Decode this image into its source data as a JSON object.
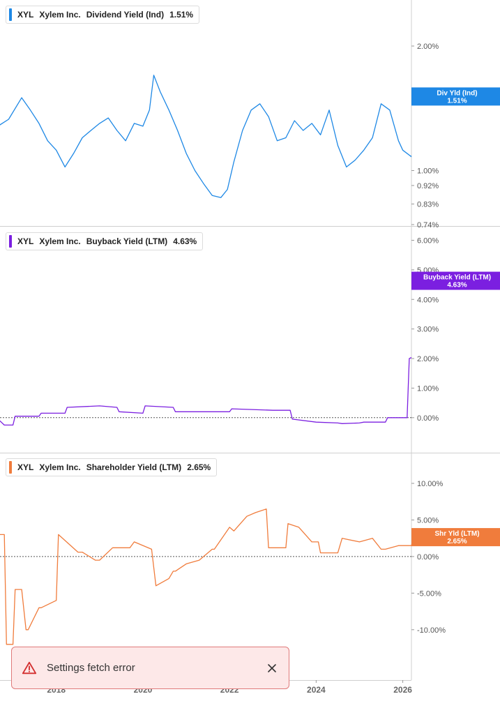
{
  "chart_data": [
    {
      "type": "line",
      "legend": {
        "ticker": "XYL",
        "company": "Xylem Inc.",
        "metric": "Dividend Yield (Ind)",
        "value": "1.51%"
      },
      "tag": {
        "line1": "Div Yld (Ind)",
        "line2": "1.51%"
      },
      "y_scale": "log",
      "ylim": [
        0.74,
        2.3
      ],
      "y_ticks": [
        {
          "v": 2.0,
          "label": "2.00%"
        },
        {
          "v": 1.0,
          "label": "1.00%"
        },
        {
          "v": 0.92,
          "label": "0.92%"
        },
        {
          "v": 0.83,
          "label": "0.83%"
        },
        {
          "v": 0.74,
          "label": "0.74%"
        }
      ],
      "color": "#1e88e5",
      "series": [
        {
          "x": [
            2016.4,
            2016.6,
            2016.9,
            2017.2,
            2017.4,
            2017.6,
            2017.8,
            2018.0,
            2018.2,
            2018.4,
            2018.6,
            2018.8,
            2019.0,
            2019.2,
            2019.4,
            2019.6,
            2019.8,
            2020.0,
            2020.15,
            2020.25,
            2020.4,
            2020.6,
            2020.8,
            2021.0,
            2021.2,
            2021.4,
            2021.6,
            2021.8,
            2021.95,
            2022.1,
            2022.3,
            2022.5,
            2022.7,
            2022.9,
            2023.1,
            2023.3,
            2023.5,
            2023.7,
            2023.9,
            2024.1,
            2024.3,
            2024.5,
            2024.7,
            2024.9,
            2025.1,
            2025.3,
            2025.5,
            2025.7,
            2025.9,
            2026.0,
            2026.2,
            2026.35,
            2026.5,
            2026.6
          ],
          "y": [
            1.3,
            1.27,
            1.33,
            1.5,
            1.4,
            1.3,
            1.18,
            1.12,
            1.02,
            1.1,
            1.2,
            1.25,
            1.3,
            1.34,
            1.25,
            1.18,
            1.3,
            1.28,
            1.4,
            1.7,
            1.55,
            1.4,
            1.25,
            1.1,
            1.0,
            0.93,
            0.87,
            0.86,
            0.9,
            1.05,
            1.25,
            1.4,
            1.45,
            1.35,
            1.18,
            1.2,
            1.32,
            1.25,
            1.3,
            1.22,
            1.4,
            1.15,
            1.02,
            1.06,
            1.12,
            1.2,
            1.45,
            1.4,
            1.18,
            1.12,
            1.08,
            1.25,
            1.55,
            1.51
          ]
        }
      ]
    },
    {
      "type": "line",
      "legend": {
        "ticker": "XYL",
        "company": "Xylem Inc.",
        "metric": "Buyback Yield (LTM)",
        "value": "4.63%"
      },
      "tag": {
        "line1": "Buyback Yield (LTM)",
        "line2": "4.63%"
      },
      "y_scale": "linear",
      "ylim": [
        -0.5,
        6.2
      ],
      "y_ticks": [
        {
          "v": 6.0,
          "label": "6.00%"
        },
        {
          "v": 5.0,
          "label": "5.00%"
        },
        {
          "v": 4.0,
          "label": "4.00%"
        },
        {
          "v": 3.0,
          "label": "3.00%"
        },
        {
          "v": 2.0,
          "label": "2.00%"
        },
        {
          "v": 1.0,
          "label": "1.00%"
        },
        {
          "v": 0.0,
          "label": "0.00%"
        }
      ],
      "color": "#7b1fe0",
      "series": [
        {
          "x": [
            2016.4,
            2016.6,
            2016.62,
            2016.8,
            2017.0,
            2017.05,
            2017.6,
            2017.65,
            2018.2,
            2018.25,
            2019.0,
            2019.4,
            2019.45,
            2020.0,
            2020.05,
            2020.7,
            2020.75,
            2021.5,
            2022.0,
            2022.05,
            2023.0,
            2023.05,
            2023.4,
            2023.45,
            2024.0,
            2024.5,
            2024.6,
            2025.0,
            2025.1,
            2025.6,
            2025.65,
            2026.0,
            2026.1,
            2026.15,
            2026.3,
            2026.45,
            2026.5,
            2026.55,
            2026.6
          ],
          "y": [
            1.1,
            1.1,
            0.0,
            -0.25,
            -0.25,
            0.05,
            0.05,
            0.15,
            0.15,
            0.35,
            0.4,
            0.35,
            0.2,
            0.15,
            0.4,
            0.35,
            0.2,
            0.2,
            0.2,
            0.3,
            0.25,
            0.25,
            0.25,
            -0.05,
            -0.15,
            -0.18,
            -0.2,
            -0.18,
            -0.15,
            -0.15,
            0.0,
            0.0,
            0.0,
            2.0,
            2.1,
            1.9,
            4.3,
            4.5,
            4.63
          ]
        }
      ]
    },
    {
      "type": "line",
      "legend": {
        "ticker": "XYL",
        "company": "Xylem Inc.",
        "metric": "Shareholder Yield (LTM)",
        "value": "2.65%"
      },
      "tag": {
        "line1": "Shr Yld (LTM)",
        "line2": "2.65%"
      },
      "y_scale": "linear",
      "ylim": [
        -14.5,
        12.0
      ],
      "y_ticks": [
        {
          "v": 10.0,
          "label": "10.00%"
        },
        {
          "v": 5.0,
          "label": "5.00%"
        },
        {
          "v": 0.0,
          "label": "0.00%"
        },
        {
          "v": -5.0,
          "label": "-5.00%"
        },
        {
          "v": -10.0,
          "label": "-10.00%"
        }
      ],
      "color": "#f07c3c",
      "series": [
        {
          "x": [
            2016.4,
            2016.8,
            2016.85,
            2017.0,
            2017.05,
            2017.2,
            2017.3,
            2017.35,
            2017.6,
            2017.65,
            2018.0,
            2018.05,
            2018.5,
            2018.6,
            2018.9,
            2019.0,
            2019.3,
            2019.7,
            2019.8,
            2020.2,
            2020.3,
            2020.6,
            2020.7,
            2020.75,
            2021.0,
            2021.3,
            2021.6,
            2021.65,
            2022.0,
            2022.1,
            2022.4,
            2022.6,
            2022.85,
            2022.9,
            2023.3,
            2023.35,
            2023.6,
            2023.9,
            2024.05,
            2024.1,
            2024.5,
            2024.6,
            2025.0,
            2025.3,
            2025.5,
            2025.6,
            2025.9,
            2026.2,
            2026.3,
            2026.5,
            2026.6
          ],
          "y": [
            3.0,
            3.0,
            -12.0,
            -12.0,
            -4.5,
            -4.5,
            -10.0,
            -10.0,
            -7.0,
            -7.0,
            -6.0,
            3.0,
            0.6,
            0.6,
            -0.5,
            -0.5,
            1.2,
            1.2,
            2.0,
            1.0,
            -4.0,
            -3.0,
            -2.0,
            -2.0,
            -1.0,
            -0.5,
            1.0,
            1.0,
            4.0,
            3.5,
            5.5,
            6.0,
            6.5,
            1.2,
            1.2,
            4.5,
            4.0,
            2.0,
            2.0,
            0.5,
            0.5,
            2.5,
            2.0,
            2.5,
            1.0,
            1.0,
            1.5,
            1.5,
            4.0,
            3.2,
            2.65
          ]
        }
      ]
    }
  ],
  "x_axis": {
    "ticks": [
      {
        "v": 2018,
        "label": "2018"
      },
      {
        "v": 2020,
        "label": "2020"
      },
      {
        "v": 2022,
        "label": "2022"
      },
      {
        "v": 2024,
        "label": "2024"
      },
      {
        "v": 2026,
        "label": "2026"
      }
    ],
    "xlim": [
      2016.7,
      2026.2
    ]
  },
  "toast": {
    "message": "Settings fetch error"
  }
}
